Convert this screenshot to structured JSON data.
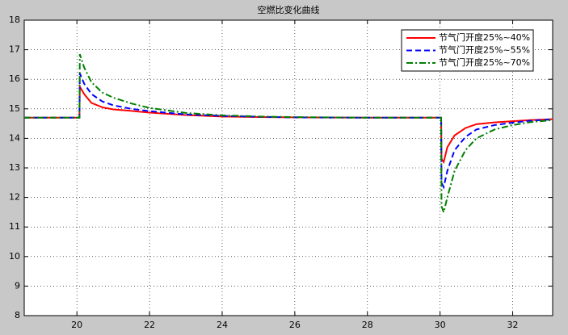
{
  "chart_data": {
    "type": "line",
    "title": "空燃比变化曲线",
    "x": [
      18.55,
      20.07,
      20.08,
      20.2,
      20.4,
      20.7,
      21,
      21.5,
      22,
      23,
      24,
      25,
      26,
      28,
      30.03,
      30.04,
      30.1,
      30.2,
      30.4,
      30.7,
      31,
      31.5,
      32,
      32.5,
      33.1
    ],
    "series": [
      {
        "name": "节气门开度25%~40%",
        "color": "#ff0000",
        "style": "solid",
        "values": [
          14.7,
          14.7,
          15.75,
          15.5,
          15.2,
          15.05,
          14.98,
          14.93,
          14.87,
          14.79,
          14.74,
          14.72,
          14.71,
          14.7,
          14.7,
          13.3,
          13.2,
          13.7,
          14.1,
          14.35,
          14.48,
          14.54,
          14.58,
          14.62,
          14.65
        ]
      },
      {
        "name": "节气门开度25%~55%",
        "color": "#0000ff",
        "style": "dashed",
        "values": [
          14.7,
          14.7,
          16.2,
          15.85,
          15.5,
          15.25,
          15.12,
          15.0,
          14.92,
          14.81,
          14.76,
          14.73,
          14.71,
          14.7,
          14.7,
          12.5,
          12.35,
          12.9,
          13.6,
          14.05,
          14.3,
          14.45,
          14.53,
          14.6,
          14.64
        ]
      },
      {
        "name": "节气门开度25%~70%",
        "color": "#008000",
        "style": "dashdot",
        "values": [
          14.7,
          14.7,
          16.85,
          16.4,
          15.9,
          15.55,
          15.38,
          15.18,
          15.03,
          14.86,
          14.78,
          14.74,
          14.72,
          14.7,
          14.7,
          11.7,
          11.5,
          12.0,
          12.9,
          13.6,
          14.0,
          14.3,
          14.45,
          14.55,
          14.62
        ]
      }
    ],
    "xlim": [
      18.55,
      33.1
    ],
    "xticks": [
      20,
      22,
      24,
      26,
      28,
      30,
      32
    ],
    "ylim": [
      8,
      18
    ],
    "yticks": [
      8,
      9,
      10,
      11,
      12,
      13,
      14,
      15,
      16,
      17,
      18
    ],
    "grid": true,
    "legend": "upper right"
  }
}
